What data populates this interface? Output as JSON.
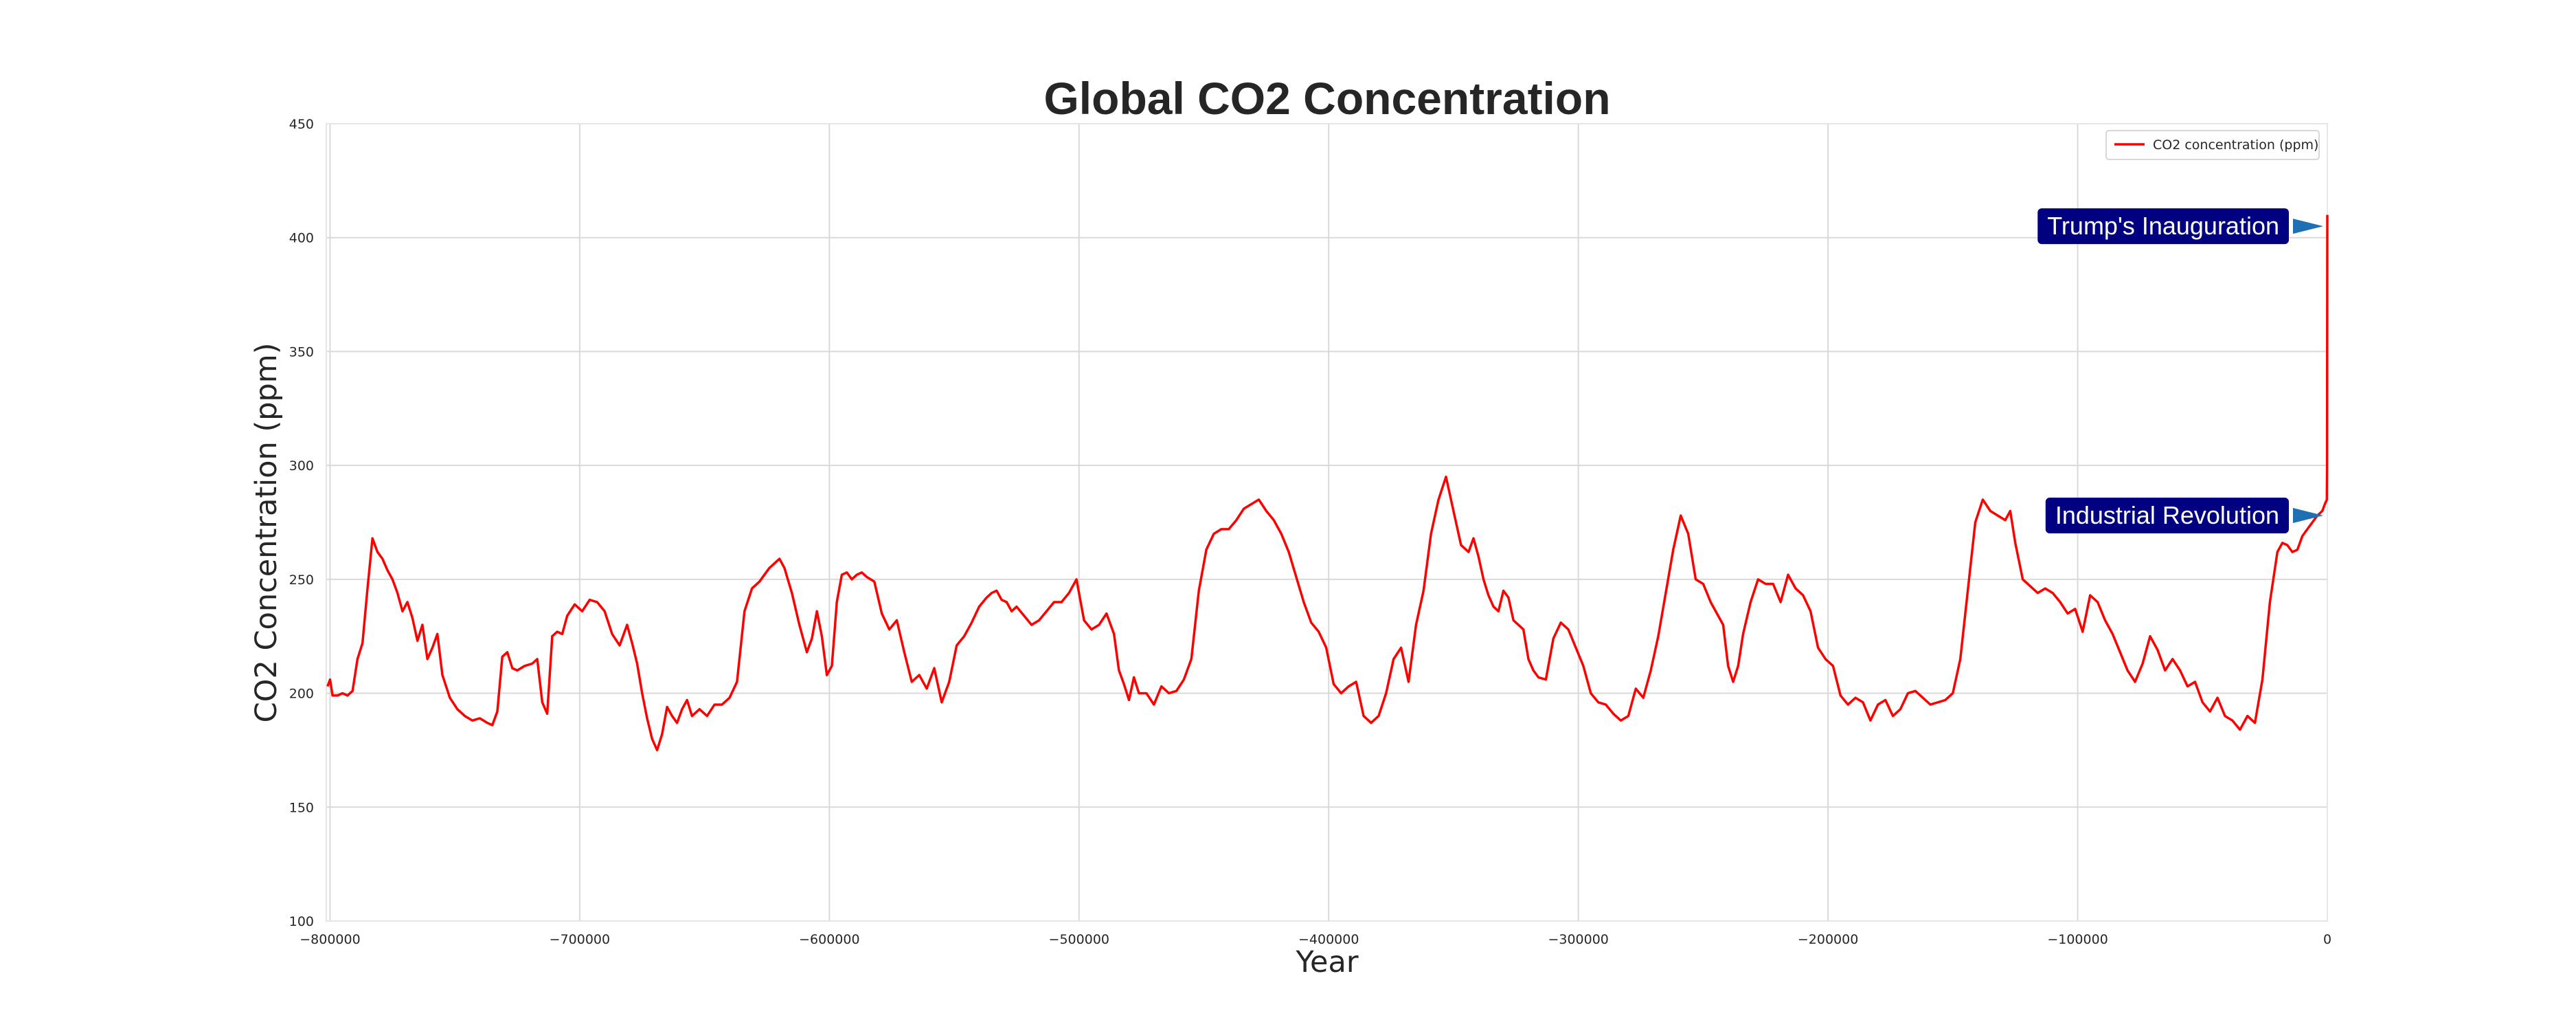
{
  "chart_data": {
    "type": "line",
    "title": "Global CO2 Concentration",
    "xlabel": "Year",
    "ylabel": "CO2 Concentration (ppm)",
    "xlim": [
      -801500,
      0
    ],
    "ylim": [
      100,
      450
    ],
    "x_ticks": [
      -800000,
      -700000,
      -600000,
      -500000,
      -400000,
      -300000,
      -200000,
      -100000,
      0
    ],
    "x_tick_labels": [
      "−800000",
      "−700000",
      "−600000",
      "−500000",
      "−400000",
      "−300000",
      "−200000",
      "−100000",
      "0"
    ],
    "y_ticks": [
      100,
      150,
      200,
      250,
      300,
      350,
      400,
      450
    ],
    "y_tick_labels": [
      "100",
      "150",
      "200",
      "250",
      "300",
      "350",
      "400",
      "450"
    ],
    "grid": true,
    "legend_position": "top-right",
    "colors": {
      "line": "#ff0000",
      "annotation_box": "#000080",
      "arrow": "#1f6fb5"
    },
    "series": [
      {
        "name": "CO2 concentration (ppm)",
        "x": [
          -801000,
          -800000,
          -799000,
          -797000,
          -795000,
          -793000,
          -791000,
          -789000,
          -787000,
          -785000,
          -783000,
          -781000,
          -779000,
          -777000,
          -775000,
          -773000,
          -771000,
          -769000,
          -767000,
          -765000,
          -763000,
          -761000,
          -759000,
          -757000,
          -755000,
          -752000,
          -749000,
          -746000,
          -743000,
          -740000,
          -737000,
          -735000,
          -733000,
          -731000,
          -729000,
          -727000,
          -725000,
          -722000,
          -719000,
          -717000,
          -715000,
          -713000,
          -711000,
          -709000,
          -707000,
          -705000,
          -702000,
          -699000,
          -696000,
          -693000,
          -690000,
          -687000,
          -684000,
          -681000,
          -679000,
          -677000,
          -675000,
          -673000,
          -671000,
          -669000,
          -667000,
          -665000,
          -663000,
          -661000,
          -659000,
          -657000,
          -655000,
          -652000,
          -649000,
          -646000,
          -643000,
          -640000,
          -637000,
          -634000,
          -631000,
          -628000,
          -626000,
          -624000,
          -622000,
          -620000,
          -618000,
          -615000,
          -612000,
          -609000,
          -607000,
          -605000,
          -603000,
          -601000,
          -599000,
          -597000,
          -595000,
          -593000,
          -591000,
          -589000,
          -587000,
          -585000,
          -582000,
          -579000,
          -576000,
          -573000,
          -570000,
          -567000,
          -564000,
          -561000,
          -558000,
          -555000,
          -552000,
          -549000,
          -546000,
          -543000,
          -540000,
          -537000,
          -535000,
          -533000,
          -531000,
          -529000,
          -527000,
          -525000,
          -522000,
          -519000,
          -516000,
          -513000,
          -510000,
          -507000,
          -504000,
          -501000,
          -498000,
          -495000,
          -492000,
          -489000,
          -486000,
          -484000,
          -482000,
          -480000,
          -478000,
          -476000,
          -473000,
          -470000,
          -467000,
          -464000,
          -461000,
          -458000,
          -455000,
          -452000,
          -449000,
          -446000,
          -443000,
          -440000,
          -437000,
          -434000,
          -431000,
          -428000,
          -425000,
          -422000,
          -419000,
          -416000,
          -413000,
          -410000,
          -407000,
          -404000,
          -401000,
          -398000,
          -395000,
          -392000,
          -389000,
          -386000,
          -383000,
          -380000,
          -377000,
          -374000,
          -371000,
          -368000,
          -365000,
          -362000,
          -359000,
          -356000,
          -353000,
          -350000,
          -347000,
          -344000,
          -342000,
          -340000,
          -338000,
          -336000,
          -334000,
          -332000,
          -330000,
          -328000,
          -326000,
          -324000,
          -322000,
          -320000,
          -318000,
          -316000,
          -313000,
          -310000,
          -307000,
          -304000,
          -301000,
          -298000,
          -295000,
          -292000,
          -289000,
          -286000,
          -283000,
          -280000,
          -277000,
          -274000,
          -271000,
          -268000,
          -265000,
          -262000,
          -259000,
          -256000,
          -253000,
          -250000,
          -247000,
          -244000,
          -242000,
          -240000,
          -238000,
          -236000,
          -234000,
          -231000,
          -228000,
          -225000,
          -222000,
          -219000,
          -216000,
          -213000,
          -210000,
          -207000,
          -204000,
          -201000,
          -198000,
          -195000,
          -192000,
          -189000,
          -186000,
          -183000,
          -180000,
          -177000,
          -174000,
          -171000,
          -168000,
          -165000,
          -162000,
          -159000,
          -156000,
          -153000,
          -150000,
          -147000,
          -144000,
          -141000,
          -138000,
          -135000,
          -132000,
          -129000,
          -127000,
          -125000,
          -122000,
          -119000,
          -116000,
          -113000,
          -110000,
          -107000,
          -104000,
          -101000,
          -98000,
          -95000,
          -92000,
          -89000,
          -86000,
          -83000,
          -80000,
          -77000,
          -74000,
          -71000,
          -68000,
          -65000,
          -62000,
          -59000,
          -56000,
          -53000,
          -50000,
          -47000,
          -44000,
          -41000,
          -38000,
          -35000,
          -32000,
          -29000,
          -26000,
          -23000,
          -20000,
          -18000,
          -16000,
          -14000,
          -12000,
          -10000,
          -8000,
          -6000,
          -4000,
          -2000,
          -1000,
          -200,
          -100,
          0
        ],
        "values": [
          203,
          206,
          199,
          199,
          200,
          199,
          201,
          215,
          222,
          246,
          268,
          262,
          259,
          254,
          250,
          244,
          236,
          240,
          233,
          223,
          230,
          215,
          220,
          226,
          208,
          198,
          193,
          190,
          188,
          189,
          187,
          186,
          192,
          216,
          218,
          211,
          210,
          212,
          213,
          215,
          196,
          191,
          225,
          227,
          226,
          234,
          239,
          236,
          241,
          240,
          236,
          226,
          221,
          230,
          222,
          213,
          200,
          189,
          180,
          175,
          182,
          194,
          190,
          187,
          193,
          197,
          190,
          193,
          190,
          195,
          195,
          198,
          205,
          236,
          246,
          249,
          252,
          255,
          257,
          259,
          255,
          244,
          230,
          218,
          224,
          236,
          225,
          208,
          212,
          240,
          252,
          253,
          250,
          252,
          253,
          251,
          249,
          235,
          228,
          232,
          218,
          205,
          208,
          202,
          211,
          196,
          205,
          221,
          225,
          231,
          238,
          242,
          244,
          245,
          241,
          240,
          236,
          238,
          234,
          230,
          232,
          236,
          240,
          240,
          244,
          250,
          232,
          228,
          230,
          235,
          226,
          210,
          204,
          197,
          207,
          200,
          200,
          195,
          203,
          200,
          201,
          206,
          215,
          245,
          263,
          270,
          272,
          272,
          276,
          281,
          283,
          285,
          280,
          276,
          270,
          262,
          251,
          240,
          231,
          227,
          220,
          204,
          200,
          203,
          205,
          190,
          187,
          190,
          200,
          215,
          220,
          205,
          230,
          245,
          270,
          285,
          295,
          280,
          265,
          262,
          268,
          260,
          250,
          243,
          238,
          236,
          245,
          242,
          232,
          230,
          228,
          215,
          210,
          207,
          206,
          224,
          231,
          228,
          220,
          212,
          200,
          196,
          195,
          191,
          188,
          190,
          202,
          198,
          210,
          225,
          244,
          263,
          278,
          270,
          250,
          248,
          240,
          234,
          230,
          212,
          205,
          212,
          226,
          240,
          250,
          248,
          248,
          240,
          252,
          246,
          243,
          236,
          220,
          215,
          212,
          199,
          195,
          198,
          196,
          188,
          195,
          197,
          190,
          193,
          200,
          201,
          198,
          195,
          196,
          197,
          200,
          215,
          245,
          275,
          285,
          280,
          278,
          276,
          280,
          266,
          250,
          247,
          244,
          246,
          244,
          240,
          235,
          237,
          227,
          243,
          240,
          232,
          226,
          218,
          210,
          205,
          213,
          225,
          219,
          210,
          215,
          210,
          203,
          205,
          196,
          192,
          198,
          190,
          188,
          184,
          190,
          187,
          206,
          240,
          262,
          266,
          265,
          262,
          263,
          269,
          272,
          275,
          278,
          280,
          283,
          285,
          300,
          410
        ]
      }
    ],
    "annotations": [
      {
        "text": "Trump's Inauguration",
        "x": 0,
        "y": 405
      },
      {
        "text": "Industrial Revolution",
        "x": 0,
        "y": 278
      }
    ]
  }
}
